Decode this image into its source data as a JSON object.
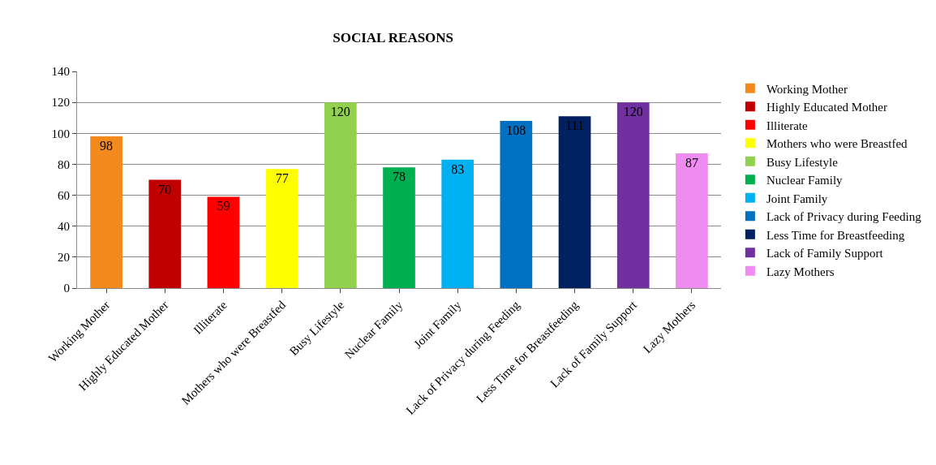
{
  "chart_data": {
    "type": "bar",
    "title": "SOCIAL REASONS",
    "categories": [
      "Working Mother",
      "Highly Educated Mother",
      "Illiterate",
      "Mothers who were Breastfed",
      "Busy Lifestyle",
      "Nuclear Family",
      "Joint Family",
      "Lack of Privacy during Feeding",
      "Less Time for Breastfeeding",
      "Lack of Family Support",
      "Lazy Mothers"
    ],
    "series": [
      {
        "name": "Working Mother",
        "color": "#f28a1e",
        "values": [
          98,
          null,
          null,
          null,
          null,
          null,
          null,
          null,
          null,
          null,
          null
        ]
      },
      {
        "name": "Highly Educated Mother",
        "color": "#c00000",
        "values": [
          null,
          70,
          null,
          null,
          null,
          null,
          null,
          null,
          null,
          null,
          null
        ]
      },
      {
        "name": "Illiterate",
        "color": "#ff0000",
        "values": [
          null,
          null,
          59,
          null,
          null,
          null,
          null,
          null,
          null,
          null,
          null
        ]
      },
      {
        "name": "Mothers who were Breastfed",
        "color": "#ffff00",
        "values": [
          null,
          null,
          null,
          77,
          null,
          null,
          null,
          null,
          null,
          null,
          null
        ]
      },
      {
        "name": "Busy Lifestyle",
        "color": "#92d050",
        "values": [
          null,
          null,
          null,
          null,
          120,
          null,
          null,
          null,
          null,
          null,
          null
        ]
      },
      {
        "name": "Nuclear Family",
        "color": "#00b050",
        "values": [
          null,
          null,
          null,
          null,
          null,
          78,
          null,
          null,
          null,
          null,
          null
        ]
      },
      {
        "name": "Joint Family",
        "color": "#00b0f0",
        "values": [
          null,
          null,
          null,
          null,
          null,
          null,
          83,
          null,
          null,
          null,
          null
        ]
      },
      {
        "name": "Lack of Privacy during Feeding",
        "color": "#0070c0",
        "values": [
          null,
          null,
          null,
          null,
          null,
          null,
          null,
          108,
          null,
          null,
          null
        ]
      },
      {
        "name": "Less Time for Breastfeeding",
        "color": "#002060",
        "values": [
          null,
          null,
          null,
          null,
          null,
          null,
          null,
          null,
          111,
          null,
          null
        ]
      },
      {
        "name": "Lack of Family Support",
        "color": "#7030a0",
        "values": [
          null,
          null,
          null,
          null,
          null,
          null,
          null,
          null,
          null,
          120,
          null
        ]
      },
      {
        "name": "Lazy Mothers",
        "color": "#f08cf0",
        "values": [
          null,
          null,
          null,
          null,
          null,
          null,
          null,
          null,
          null,
          null,
          87
        ]
      }
    ],
    "ylim": [
      0,
      140
    ],
    "yticks": [
      0,
      20,
      40,
      60,
      80,
      100,
      120,
      140
    ],
    "grid": "y",
    "legend": "right",
    "data_labels": true
  }
}
